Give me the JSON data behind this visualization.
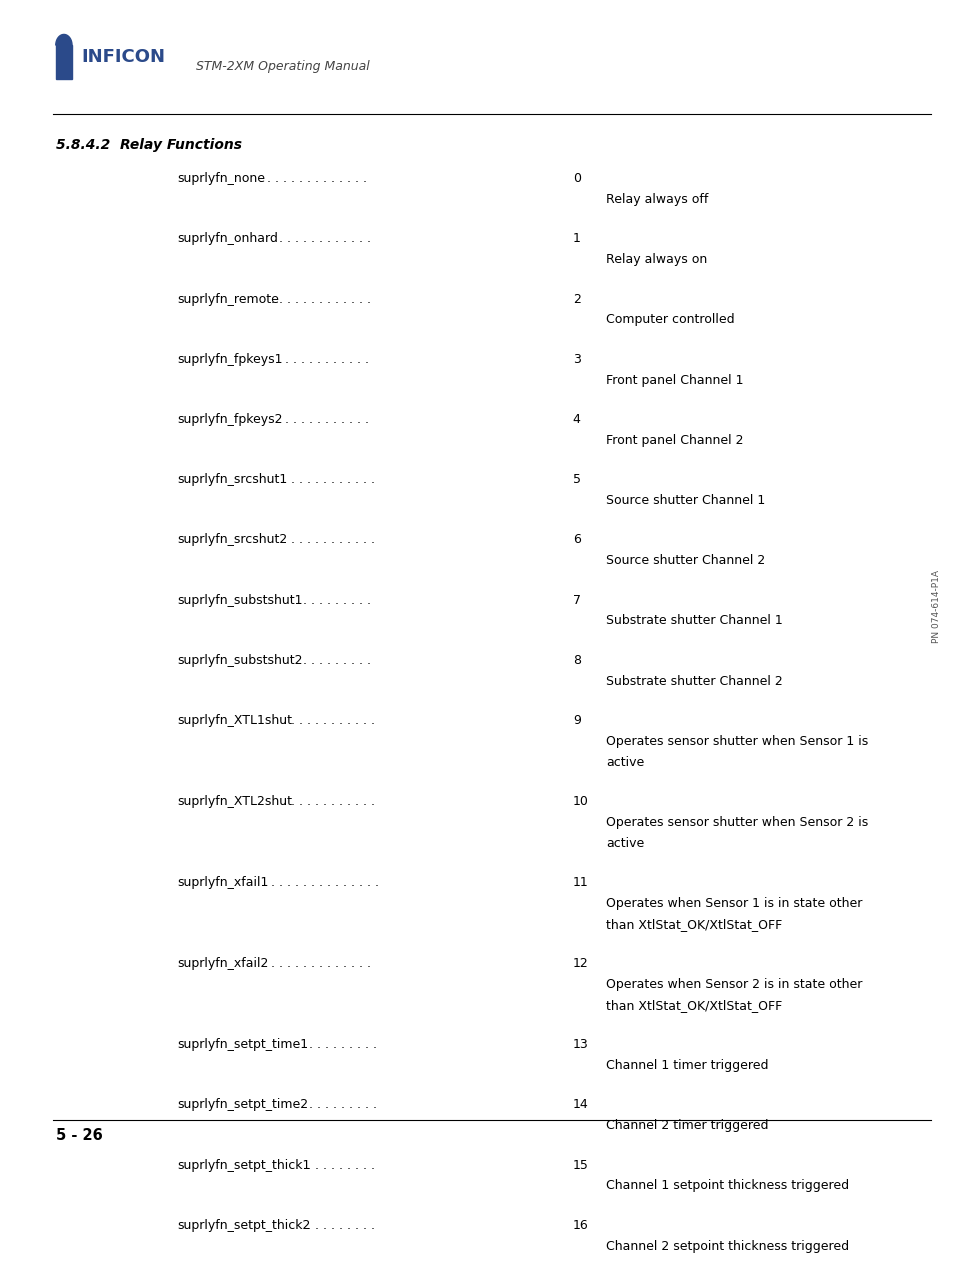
{
  "page_width": 9.54,
  "page_height": 12.35,
  "bg_color": "#ffffff",
  "header_logo_text": "INFICON",
  "header_subtitle": "STM-2XM Operating Manual",
  "section_title": "5.8.4.2  Relay Functions",
  "entries": [
    {
      "name": "suprlyfn_none",
      "number": "0",
      "description": "Relay always off",
      "multiline": false
    },
    {
      "name": "suprlyfn_onhard",
      "number": "1",
      "description": "Relay always on",
      "multiline": false
    },
    {
      "name": "suprlyfn_remote",
      "number": "2",
      "description": "Computer controlled",
      "multiline": false
    },
    {
      "name": "suprlyfn_fpkeys1",
      "number": "3",
      "description": "Front panel Channel 1",
      "multiline": false
    },
    {
      "name": "suprlyfn_fpkeys2",
      "number": "4",
      "description": "Front panel Channel 2",
      "multiline": false
    },
    {
      "name": "suprlyfn_srcshut1",
      "number": "5",
      "description": "Source shutter Channel 1",
      "multiline": false
    },
    {
      "name": "suprlyfn_srcshut2",
      "number": "6",
      "description": "Source shutter Channel 2",
      "multiline": false
    },
    {
      "name": "suprlyfn_substshut1",
      "number": "7",
      "description": "Substrate shutter Channel 1",
      "multiline": false
    },
    {
      "name": "suprlyfn_substshut2",
      "number": "8",
      "description": "Substrate shutter Channel 2",
      "multiline": false
    },
    {
      "name": "suprlyfn_XTL1shut",
      "number": "9",
      "description": "Operates sensor shutter when Sensor 1 is\nactive",
      "multiline": true
    },
    {
      "name": "suprlyfn_XTL2shut",
      "number": "10",
      "description": "Operates sensor shutter when Sensor 2 is\nactive",
      "multiline": true
    },
    {
      "name": "suprlyfn_xfail1",
      "number": "11",
      "description": "Operates when Sensor 1 is in state other\nthan XtlStat_OK/XtlStat_OFF",
      "multiline": true
    },
    {
      "name": "suprlyfn_xfail2",
      "number": "12",
      "description": "Operates when Sensor 2 is in state other\nthan XtlStat_OK/XtlStat_OFF",
      "multiline": true
    },
    {
      "name": "suprlyfn_setpt_time1",
      "number": "13",
      "description": "Channel 1 timer triggered",
      "multiline": false
    },
    {
      "name": "suprlyfn_setpt_time2",
      "number": "14",
      "description": "Channel 2 timer triggered",
      "multiline": false
    },
    {
      "name": "suprlyfn_setpt_thick1",
      "number": "15",
      "description": "Channel 1 setpoint thickness triggered",
      "multiline": false
    },
    {
      "name": "suprlyfn_setpt_thick2",
      "number": "16",
      "description": "Channel 2 setpoint thickness triggered",
      "multiline": false
    }
  ],
  "footer_text": "5 - 26",
  "side_text": "PN 074-614-P1A",
  "text_color": "#000000",
  "logo_color": "#2b4a8a",
  "dots_per_entry": {
    "suprlyfn_none": ". . . . . . . . . . . . . .",
    "suprlyfn_onhard": ". . . . . . . . . . . . .",
    "suprlyfn_remote": ". . . . . . . . . . . . .",
    "suprlyfn_fpkeys1": ". . . . . . . . . . . .",
    "suprlyfn_fpkeys2": ". . . . . . . . . . . .",
    "suprlyfn_srcshut1": ". . . . . . . . . . . .",
    "suprlyfn_srcshut2": ". . . . . . . . . . . .",
    "suprlyfn_substshut1": ". . . . . . . . . .",
    "suprlyfn_substshut2": ". . . . . . . . . .",
    "suprlyfn_XTL1shut": ". . . . . . . . . . . .",
    "suprlyfn_XTL2shut": ". . . . . . . . . . . .",
    "suprlyfn_xfail1": ". . . . . . . . . . . . . .",
    "suprlyfn_xfail2": ". . . . . . . . . . . . .",
    "suprlyfn_setpt_time1": ". . . . . . . . . .",
    "suprlyfn_setpt_time2": ". . . . . . . . . .",
    "suprlyfn_setpt_thick1": ". . . . . . . . .",
    "suprlyfn_setpt_thick2": ". . . . . . . . ."
  }
}
